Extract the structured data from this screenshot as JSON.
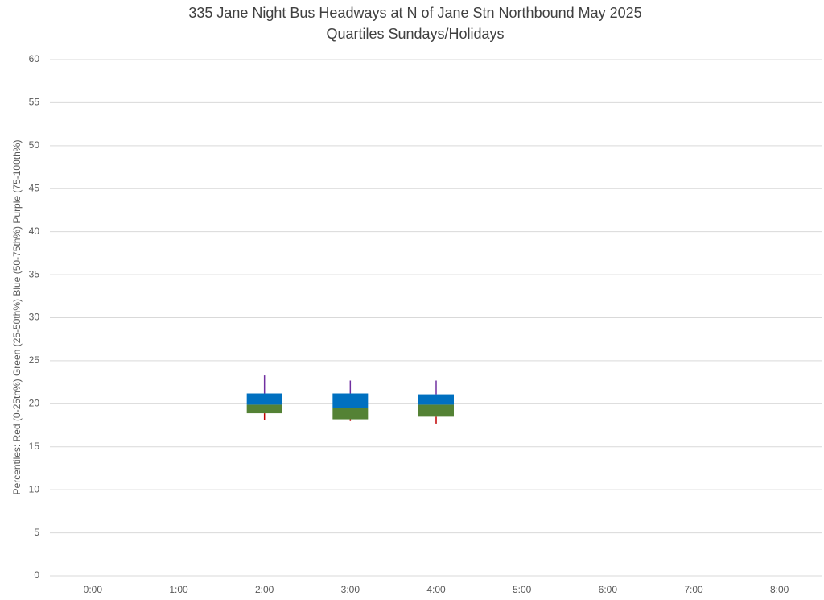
{
  "chart_data": {
    "type": "box",
    "title": "335 Jane Night Bus Headways at N of Jane Stn Northbound May 2025",
    "subtitle": "Quartiles Sundays/Holidays",
    "y_label": "Percentiles:  Red (0-25th%)  Green (25-50th%)  Blue (50-75th%)  Purple (75-100th%)",
    "categories": [
      "0:00",
      "1:00",
      "2:00",
      "3:00",
      "4:00",
      "5:00",
      "6:00",
      "7:00",
      "8:00"
    ],
    "min": [
      null,
      null,
      18.1,
      18.0,
      17.7,
      null,
      null,
      null,
      null
    ],
    "q1": [
      null,
      null,
      18.9,
      18.2,
      18.5,
      null,
      null,
      null,
      null
    ],
    "median": [
      null,
      null,
      19.9,
      19.5,
      19.9,
      null,
      null,
      null,
      null
    ],
    "q3": [
      null,
      null,
      21.2,
      21.2,
      21.1,
      null,
      null,
      null,
      null
    ],
    "max": [
      null,
      null,
      23.3,
      22.7,
      22.7,
      null,
      null,
      null,
      null
    ],
    "colors": {
      "low_whisker": "#c00000",
      "lower_box": "#548235",
      "upper_box": "#0070c0",
      "high_whisker": "#7030a0"
    },
    "ylim": [
      0,
      60
    ],
    "yticks": [
      0,
      5,
      10,
      15,
      20,
      25,
      30,
      35,
      40,
      45,
      50,
      55,
      60
    ],
    "grid": true
  }
}
